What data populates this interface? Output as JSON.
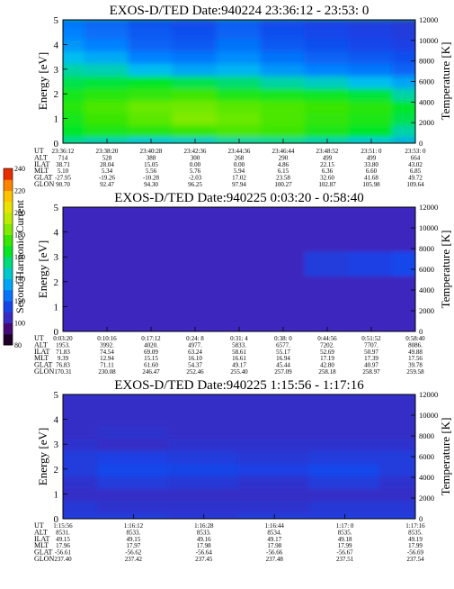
{
  "colorbar": {
    "label": "Second Harmonic Current",
    "ticks": [
      "80",
      "100",
      "120",
      "140",
      "160",
      "180",
      "200",
      "220",
      "240"
    ]
  },
  "row_labels": [
    "UT",
    "ALT",
    "ILAT",
    "MLT",
    "GLAT",
    "GLON"
  ],
  "panels": [
    {
      "title": "EXOS-D/TED   Date:940224  23:36:12 - 23:53: 0",
      "ylabel": "Energy [eV]",
      "y2label": "Temperature [K]",
      "ylim": [
        0,
        5
      ],
      "y2lim": [
        0,
        12000
      ],
      "yticks": [
        "0",
        "1",
        "2",
        "3",
        "4",
        "5"
      ],
      "y2ticks": [
        "0",
        "2000",
        "4000",
        "6000",
        "8000",
        "10000",
        "12000"
      ],
      "columns": [
        [
          "23:36:12",
          "714",
          "38.71",
          "5.10",
          "-27.95",
          "90.70"
        ],
        [
          "23:38:20",
          "528",
          "28.04",
          "5.34",
          "-19.26",
          "92.47"
        ],
        [
          "23:40:28",
          "388",
          "15.05",
          "5.56",
          "-10.28",
          "94.30"
        ],
        [
          "23:42:36",
          "300",
          "0.00",
          "5.76",
          "-2.03",
          "96.25"
        ],
        [
          "23:44:36",
          "268",
          "0.00",
          "5.94",
          "17.02",
          "97.94"
        ],
        [
          "23:46:44",
          "290",
          "4.86",
          "6.15",
          "23.58",
          "100.27"
        ],
        [
          "23:48:52",
          "499",
          "22.15",
          "6.36",
          "32.60",
          "102.87"
        ],
        [
          "23:51: 0",
          "499",
          "33.80",
          "6.60",
          "41.68",
          "105.98"
        ],
        [
          "23:53: 0",
          "664",
          "43.02",
          "6.85",
          "49.72",
          "109.64"
        ]
      ]
    },
    {
      "title": "EXOS-D/TED   Date:940225  0:03:20 - 0:58:40",
      "ylabel": "Energy [eV]",
      "y2label": "Temperature [K]",
      "ylim": [
        0,
        5
      ],
      "y2lim": [
        0,
        12000
      ],
      "yticks": [
        "0",
        "1",
        "2",
        "3",
        "4",
        "5"
      ],
      "y2ticks": [
        "0",
        "2000",
        "4000",
        "6000",
        "8000",
        "10000",
        "12000"
      ],
      "columns": [
        [
          "0:03:20",
          "1953.",
          "71.83",
          "9.39",
          "76.83",
          "170.31"
        ],
        [
          "0:10:16",
          "3992.",
          "74.54",
          "12.94",
          "71.11",
          "230.08"
        ],
        [
          "0:17:12",
          "4020.",
          "69.09",
          "15.15",
          "61.60",
          "246.47"
        ],
        [
          "0:24: 8",
          "4977.",
          "63.24",
          "16.10",
          "54.37",
          "252.46"
        ],
        [
          "0:31: 4",
          "5833.",
          "58.61",
          "16.61",
          "49.17",
          "255.40"
        ],
        [
          "0:38: 0",
          "6577.",
          "55.17",
          "16.94",
          "45.44",
          "257.09"
        ],
        [
          "0:44:56",
          "7202.",
          "52.69",
          "17.19",
          "42.80",
          "258.18"
        ],
        [
          "0:51:52",
          "7707.",
          "50.97",
          "17.39",
          "40.97",
          "258.97"
        ],
        [
          "0:58:40",
          "8086.",
          "49.88",
          "17.56",
          "39.78",
          "259.58"
        ]
      ]
    },
    {
      "title": "EXOS-D/TED   Date:940225  1:15:56 - 1:17:16",
      "ylabel": "Energy [eV]",
      "y2label": "Temperature [K]",
      "ylim": [
        0,
        5
      ],
      "y2lim": [
        0,
        12000
      ],
      "yticks": [
        "0",
        "1",
        "2",
        "3",
        "4",
        "5"
      ],
      "y2ticks": [
        "0",
        "2000",
        "4000",
        "6000",
        "8000",
        "10000",
        "12000"
      ],
      "columns": [
        [
          "1:15:56",
          "8531.",
          "49.15",
          "17.96",
          "-56.61",
          "237.40"
        ],
        [
          "1:16:12",
          "8533.",
          "49.15",
          "17.97",
          "-56.62",
          "237.42"
        ],
        [
          "1:16:28",
          "8533.",
          "49.16",
          "17.98",
          "-56.64",
          "237.45"
        ],
        [
          "1:16:44",
          "8534.",
          "49.17",
          "17.98",
          "-56.66",
          "237.48"
        ],
        [
          "1:17: 0",
          "8535.",
          "49.18",
          "17.99",
          "-56.67",
          "237.51"
        ],
        [
          "1:17:16",
          "8535.",
          "49.19",
          "17.99",
          "-56.69",
          "237.54"
        ]
      ]
    }
  ],
  "chart_data": [
    {
      "type": "heatmap",
      "title": "EXOS-D/TED   Date:940224  23:36:12 - 23:53: 0",
      "x": [
        "23:36:12",
        "23:38:20",
        "23:40:28",
        "23:42:36",
        "23:44:36",
        "23:46:44",
        "23:48:52",
        "23:51: 0",
        "23:53: 0"
      ],
      "ylabel": "Energy [eV]",
      "y2label": "Temperature [K]",
      "ylim": [
        0,
        5
      ],
      "y2lim": [
        0,
        12000
      ],
      "color_label": "Second Harmonic Current",
      "color_range": [
        80,
        240
      ],
      "rows_energy": [
        0,
        0.5,
        1,
        1.5,
        2,
        2.5,
        3,
        3.5,
        4,
        4.5,
        5
      ],
      "z": [
        [
          150,
          145,
          140,
          142,
          148,
          150,
          146,
          140,
          135
        ],
        [
          165,
          170,
          172,
          175,
          178,
          176,
          170,
          165,
          150
        ],
        [
          168,
          175,
          180,
          185,
          182,
          178,
          174,
          170,
          160
        ],
        [
          172,
          178,
          182,
          183,
          180,
          178,
          175,
          172,
          165
        ],
        [
          168,
          172,
          174,
          176,
          170,
          168,
          166,
          162,
          150
        ],
        [
          160,
          162,
          164,
          160,
          156,
          150,
          146,
          140,
          135
        ],
        [
          150,
          148,
          140,
          135,
          138,
          132,
          128,
          126,
          122
        ],
        [
          140,
          136,
          128,
          126,
          130,
          125,
          122,
          120,
          118
        ],
        [
          132,
          128,
          122,
          120,
          125,
          120,
          118,
          116,
          114
        ],
        [
          128,
          124,
          120,
          118,
          122,
          118,
          116,
          114,
          112
        ],
        [
          125,
          122,
          118,
          116,
          120,
          116,
          114,
          112,
          110
        ]
      ]
    },
    {
      "type": "heatmap",
      "title": "EXOS-D/TED   Date:940225  0:03:20 - 0:58:40",
      "x": [
        "0:03:20",
        "0:10:16",
        "0:17:12",
        "0:24: 8",
        "0:31: 4",
        "0:38: 0",
        "0:44:56",
        "0:51:52",
        "0:58:40"
      ],
      "ylabel": "Energy [eV]",
      "y2label": "Temperature [K]",
      "ylim": [
        0,
        5
      ],
      "y2lim": [
        0,
        12000
      ],
      "color_label": "Second Harmonic Current",
      "color_range": [
        80,
        240
      ],
      "rows_energy": [
        0,
        0.5,
        1,
        1.5,
        2,
        2.5,
        3,
        3.5,
        4,
        4.5,
        5
      ],
      "z": [
        [
          104,
          104,
          104,
          104,
          104,
          104,
          104,
          104,
          104
        ],
        [
          104,
          104,
          104,
          104,
          104,
          104,
          104,
          104,
          104
        ],
        [
          104,
          104,
          104,
          104,
          104,
          104,
          104,
          104,
          104
        ],
        [
          104,
          104,
          104,
          104,
          104,
          104,
          104,
          104,
          104
        ],
        [
          104,
          104,
          104,
          104,
          104,
          104,
          104,
          104,
          104
        ],
        [
          104,
          104,
          104,
          104,
          104,
          104,
          112,
          114,
          116
        ],
        [
          104,
          104,
          104,
          104,
          104,
          104,
          112,
          114,
          116
        ],
        [
          104,
          104,
          104,
          104,
          104,
          104,
          104,
          104,
          104
        ],
        [
          104,
          104,
          104,
          104,
          104,
          104,
          104,
          104,
          104
        ],
        [
          104,
          104,
          104,
          104,
          104,
          104,
          104,
          104,
          104
        ],
        [
          104,
          104,
          104,
          104,
          104,
          104,
          104,
          104,
          104
        ]
      ]
    },
    {
      "type": "heatmap",
      "title": "EXOS-D/TED   Date:940225  1:15:56 - 1:17:16",
      "x": [
        "1:15:56",
        "1:16:12",
        "1:16:28",
        "1:16:44",
        "1:17: 0",
        "1:17:16"
      ],
      "ylabel": "Energy [eV]",
      "y2label": "Temperature [K]",
      "ylim": [
        0,
        5
      ],
      "y2lim": [
        0,
        12000
      ],
      "color_label": "Second Harmonic Current",
      "color_range": [
        80,
        240
      ],
      "rows_energy": [
        0,
        0.5,
        1,
        1.5,
        2,
        2.5,
        3,
        3.5,
        4,
        4.5,
        5
      ],
      "z": [
        [
          112,
          112,
          110,
          112,
          112,
          112
        ],
        [
          110,
          108,
          108,
          108,
          110,
          110
        ],
        [
          106,
          106,
          106,
          106,
          106,
          106
        ],
        [
          108,
          112,
          110,
          108,
          112,
          108
        ],
        [
          112,
          116,
          115,
          114,
          116,
          112
        ],
        [
          112,
          114,
          112,
          110,
          112,
          112
        ],
        [
          108,
          106,
          108,
          108,
          108,
          108
        ],
        [
          106,
          108,
          106,
          106,
          106,
          106
        ],
        [
          106,
          106,
          106,
          106,
          106,
          106
        ],
        [
          106,
          106,
          106,
          106,
          106,
          106
        ],
        [
          106,
          106,
          106,
          106,
          106,
          106
        ]
      ]
    }
  ]
}
